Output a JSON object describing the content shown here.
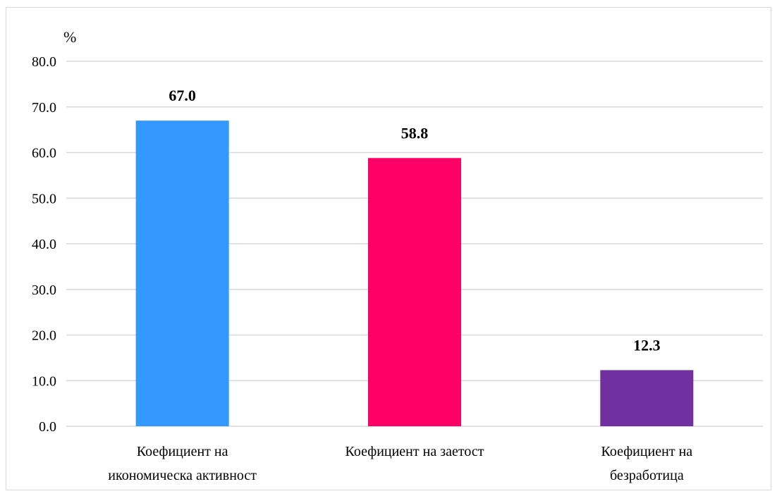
{
  "chart_data": {
    "type": "bar",
    "unit_label": "%",
    "categories": [
      [
        "Коефициент на",
        "икономическа активност"
      ],
      [
        "Коефициент на заетост"
      ],
      [
        "Коефициент на",
        "безработица"
      ]
    ],
    "values": [
      67.0,
      58.8,
      12.3
    ],
    "data_labels": [
      "67.0",
      "58.8",
      "12.3"
    ],
    "colors": [
      "#3399ff",
      "#ff0066",
      "#7030a0"
    ],
    "ylim": [
      0,
      80
    ],
    "yticks": [
      "0.0",
      "10.0",
      "20.0",
      "30.0",
      "40.0",
      "50.0",
      "60.0",
      "70.0",
      "80.0"
    ],
    "grid": true,
    "legend": "none"
  }
}
